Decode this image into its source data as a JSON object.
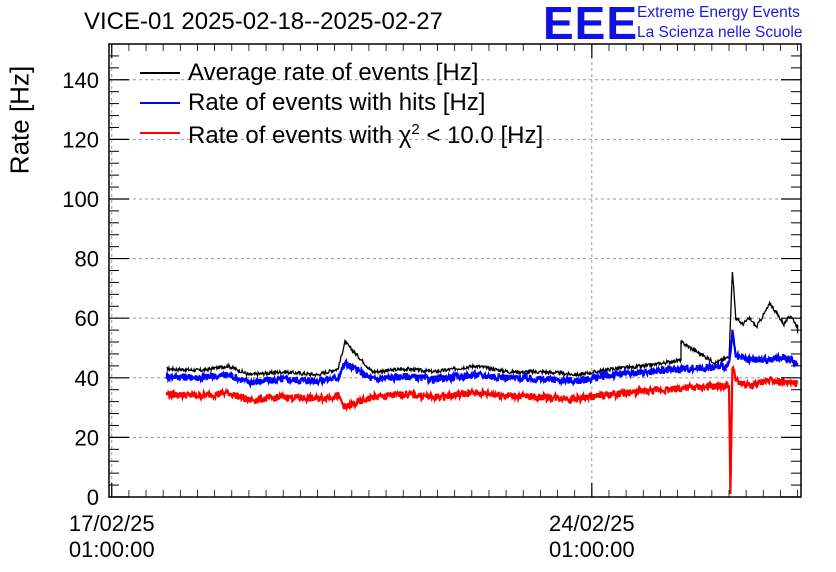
{
  "title": "VICE-01 2025-02-18--2025-02-27",
  "logo": {
    "mark": "EEE",
    "line1": "Extreme Energy Events",
    "line2": "La Scienza nelle Scuole",
    "color": "#1010e0"
  },
  "chart_data": {
    "type": "line",
    "title": "VICE-01 2025-02-18--2025-02-27",
    "ylabel": "Rate [Hz]",
    "xlabel": "",
    "ylim": [
      0,
      152
    ],
    "yticks": [
      0,
      20,
      40,
      60,
      80,
      100,
      120,
      140
    ],
    "ytick_labels": [
      "0",
      "20",
      "40",
      "60",
      "80",
      "100",
      "120",
      "140"
    ],
    "xlim_days": [
      16.96,
      27.05
    ],
    "xticks": [
      {
        "day": 17.0,
        "label_line1": "17/02/25",
        "label_line2": "01:00:00"
      },
      {
        "day": 24.0,
        "label_line1": "24/02/25",
        "label_line2": "01:00:00"
      }
    ],
    "grid": true,
    "legend_placement": "top-left",
    "series": [
      {
        "name": "Average rate of events [Hz]",
        "color": "#000000",
        "x": [
          17.8,
          18.3,
          18.7,
          19.0,
          19.5,
          20.0,
          20.3,
          20.4,
          20.8,
          21.3,
          21.7,
          22.3,
          22.8,
          23.3,
          23.8,
          24.3,
          24.8,
          25.3,
          25.3,
          25.8,
          26.0,
          26.05,
          26.1,
          26.2,
          26.3,
          26.4,
          26.6,
          26.8,
          26.9,
          27.0,
          27.0
        ],
        "y": [
          43,
          42.5,
          44,
          41,
          42,
          41,
          43,
          52,
          42,
          43,
          42,
          44,
          42,
          42,
          41,
          43,
          44,
          46,
          52,
          45,
          47,
          76,
          60,
          58,
          60,
          57,
          65,
          58,
          61,
          57,
          55
        ]
      },
      {
        "name": "Rate of events with hits [Hz]",
        "color": "#0000ff",
        "x": [
          17.8,
          18.3,
          18.7,
          19.0,
          19.5,
          20.0,
          20.3,
          20.4,
          20.8,
          21.3,
          21.7,
          22.3,
          22.8,
          23.3,
          23.8,
          24.3,
          24.8,
          25.3,
          25.8,
          26.0,
          26.05,
          26.1,
          26.3,
          26.6,
          26.8,
          27.0
        ],
        "y": [
          40.5,
          40,
          41,
          38.5,
          39.5,
          39,
          40,
          45,
          39.5,
          40.5,
          39.5,
          41,
          40,
          39.5,
          39,
          41,
          42,
          43,
          43.5,
          44,
          55,
          47,
          46,
          46,
          47,
          45
        ]
      },
      {
        "name": "Rate of events with χ² < 10.0 [Hz]",
        "color": "#ff0000",
        "x": [
          17.8,
          18.3,
          18.7,
          19.0,
          19.5,
          20.0,
          20.3,
          20.4,
          20.8,
          21.3,
          21.7,
          22.3,
          22.8,
          23.3,
          23.8,
          24.3,
          24.8,
          25.3,
          25.8,
          26.0,
          26.02,
          26.05,
          26.1,
          26.3,
          26.6,
          26.8,
          27.0
        ],
        "y": [
          34.5,
          34,
          35,
          32.5,
          33.5,
          33,
          34,
          30,
          33.5,
          34.5,
          33.5,
          35,
          34,
          33.5,
          33,
          34.5,
          35.5,
          36.5,
          37,
          37.5,
          0,
          44,
          39,
          37,
          39.5,
          38.5,
          38
        ]
      }
    ]
  },
  "legend": {
    "item1": "Average rate of events [Hz]",
    "item2": "Rate of events with hits [Hz]",
    "item3_prefix": "Rate of events with χ",
    "item3_sup": "2",
    "item3_suffix": " < 10.0 [Hz]"
  }
}
